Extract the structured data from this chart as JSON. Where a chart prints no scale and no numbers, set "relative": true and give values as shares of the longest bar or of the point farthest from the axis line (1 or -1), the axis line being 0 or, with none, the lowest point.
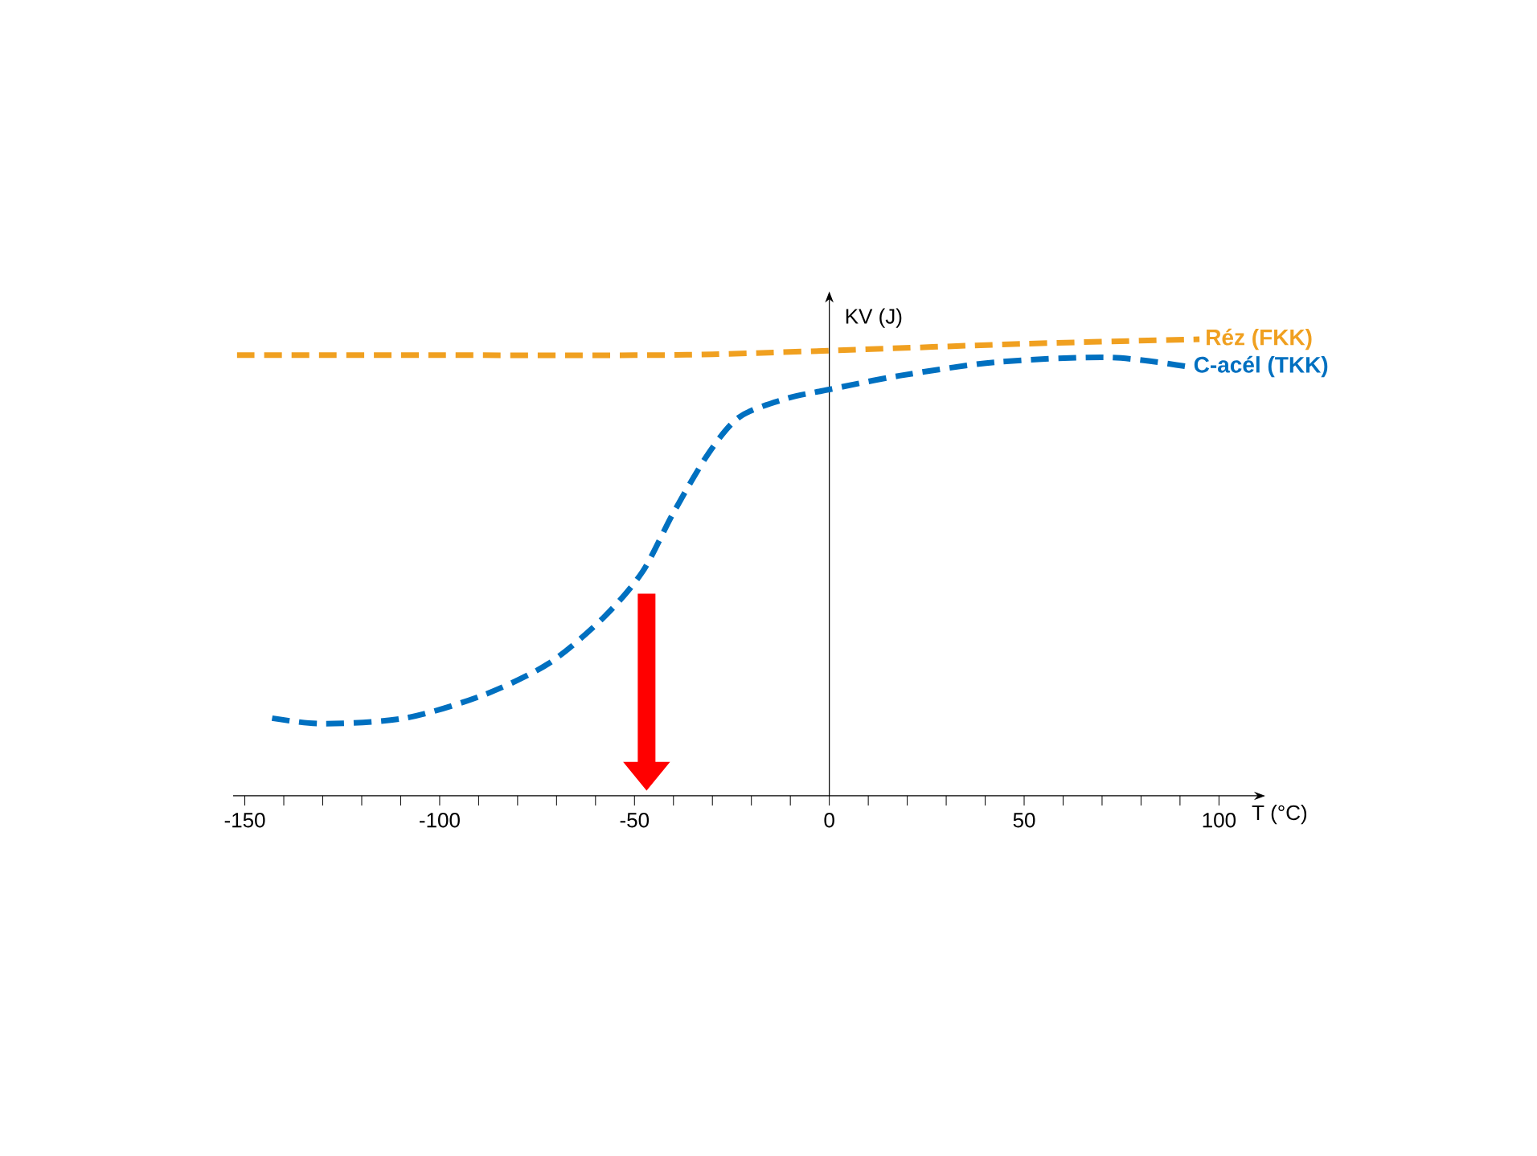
{
  "chart_data": {
    "type": "line",
    "xlabel": "T (°C)",
    "ylabel": "KV (J)",
    "relative": true,
    "xlim": [
      -153,
      109
    ],
    "xticks": [
      -150,
      {
        "value": -140,
        "label": null
      },
      {
        "value": -130,
        "label": null
      },
      {
        "value": -120,
        "label": null
      },
      {
        "value": -110,
        "label": null
      },
      -100,
      {
        "value": -90,
        "label": null
      },
      {
        "value": -80,
        "label": null
      },
      {
        "value": -70,
        "label": null
      },
      {
        "value": -60,
        "label": null
      },
      -50,
      {
        "value": -40,
        "label": null
      },
      {
        "value": -30,
        "label": null
      },
      {
        "value": -20,
        "label": null
      },
      {
        "value": -10,
        "label": null
      },
      0,
      {
        "value": 10,
        "label": null
      },
      {
        "value": 20,
        "label": null
      },
      {
        "value": 30,
        "label": null
      },
      {
        "value": 40,
        "label": null
      },
      50,
      {
        "value": 60,
        "label": null
      },
      {
        "value": 70,
        "label": null
      },
      {
        "value": 80,
        "label": null
      },
      {
        "value": 90,
        "label": null
      },
      100
    ],
    "line_style": "dashed",
    "series": [
      {
        "name": "Réz (FKK)",
        "color": "#f0a020",
        "x": [
          -152,
          -100,
          -50,
          -30,
          0,
          50,
          95
        ],
        "values": [
          0.965,
          0.965,
          0.965,
          0.967,
          0.975,
          0.99,
          1.0
        ]
      },
      {
        "name": "C-acél (TKK)",
        "color": "#0070c0",
        "x": [
          -143,
          -130,
          -109,
          -89,
          -72,
          -58,
          -48,
          -40,
          -31,
          -23,
          -11,
          0,
          18,
          43,
          72,
          92
        ],
        "values": [
          0.17,
          0.158,
          0.17,
          0.22,
          0.29,
          0.39,
          0.49,
          0.62,
          0.75,
          0.83,
          0.87,
          0.89,
          0.92,
          0.95,
          0.96,
          0.94
        ]
      }
    ]
  }
}
